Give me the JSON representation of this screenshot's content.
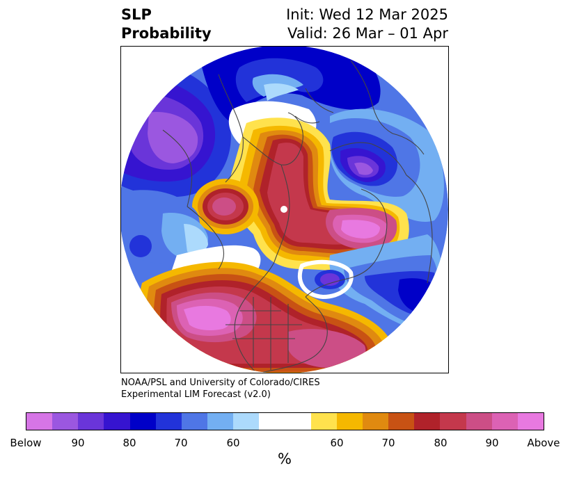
{
  "title": {
    "left_line1": "SLP",
    "left_line2": "Probability",
    "right_line1": "Init: Wed 12 Mar 2025",
    "right_line2": "Valid: 26 Mar – 01 Apr"
  },
  "credit": {
    "line1": "NOAA/PSL and University of Colorado/CIRES",
    "line2": "Experimental LIM Forecast (v2.0)"
  },
  "colorbar": {
    "colors": [
      "#d675e6",
      "#9b57e0",
      "#6a35d9",
      "#3614d0",
      "#0000c8",
      "#2233d9",
      "#4f76e6",
      "#73aff2",
      "#acdafc",
      "#ffffff",
      "#ffe24d",
      "#f5b800",
      "#e08a10",
      "#c85214",
      "#b0222a",
      "#c4384c",
      "#cc4e86",
      "#dc62b4",
      "#e879e0"
    ],
    "widths": [
      1,
      1,
      1,
      1,
      1,
      1,
      1,
      1,
      1,
      2,
      1,
      1,
      1,
      1,
      1,
      1,
      1,
      1,
      1
    ],
    "tick_labels": [
      "Below",
      "90",
      "80",
      "70",
      "60",
      "60",
      "70",
      "80",
      "90",
      "Above"
    ],
    "units": "%"
  },
  "map": {
    "projection": "north-polar-stereographic",
    "palette": {
      "below_strong": "#d675e6",
      "below_90": "#9b57e0",
      "below_85": "#6a35d9",
      "below_80": "#3614d0",
      "below_75": "#0000c8",
      "below_70": "#2233d9",
      "below_65": "#4f76e6",
      "below_60": "#73aff2",
      "below_55": "#acdafc",
      "neutral": "#ffffff",
      "above_55": "#ffe24d",
      "above_60": "#f5b800",
      "above_65": "#e08a10",
      "above_70": "#c85214",
      "above_75": "#b0222a",
      "above_80": "#c4384c",
      "above_85": "#cc4e86",
      "above_90": "#dc62b4",
      "above_strong": "#e879e0",
      "coastline": "#444444"
    }
  }
}
